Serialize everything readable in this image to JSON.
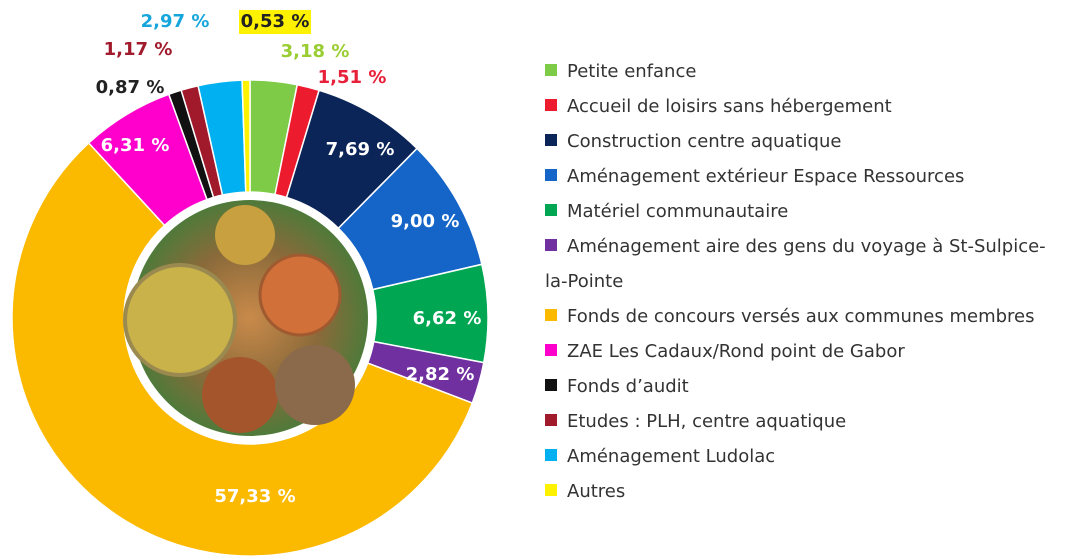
{
  "chart_data": {
    "type": "donut",
    "categories": [
      "Petite enfance",
      "Accueil de loisirs sans hébergement",
      "Construction centre aquatique",
      "Aménagement extérieur Espace Ressources",
      "Matériel communautaire",
      "Aménagement aire des gens du voyage à St-Sulpice-la-Pointe",
      "Fonds de concours versés aux communes membres",
      "ZAE Les Cadaux/Rond point de Gabor",
      "Fonds d’audit",
      "Etudes : PLH, centre aquatique",
      "Aménagement Ludolac",
      "Autres"
    ],
    "values": [
      3.18,
      1.51,
      7.69,
      9.0,
      6.62,
      2.82,
      57.33,
      6.31,
      0.87,
      1.17,
      2.97,
      0.53
    ],
    "value_labels": [
      "3,18 %",
      "1,51 %",
      "7,69 %",
      "9,00 %",
      "6,62 %",
      "2,82 %",
      "57,33 %",
      "6,31 %",
      "0,87 %",
      "1,17 %",
      "2,97 %",
      "0,53 %"
    ],
    "colors": [
      "#7dcb46",
      "#ec1c2e",
      "#0b2558",
      "#1565c8",
      "#00a652",
      "#7030a0",
      "#fbb900",
      "#ff00cc",
      "#111111",
      "#a01a2c",
      "#00b0f0",
      "#fff200"
    ]
  }
}
